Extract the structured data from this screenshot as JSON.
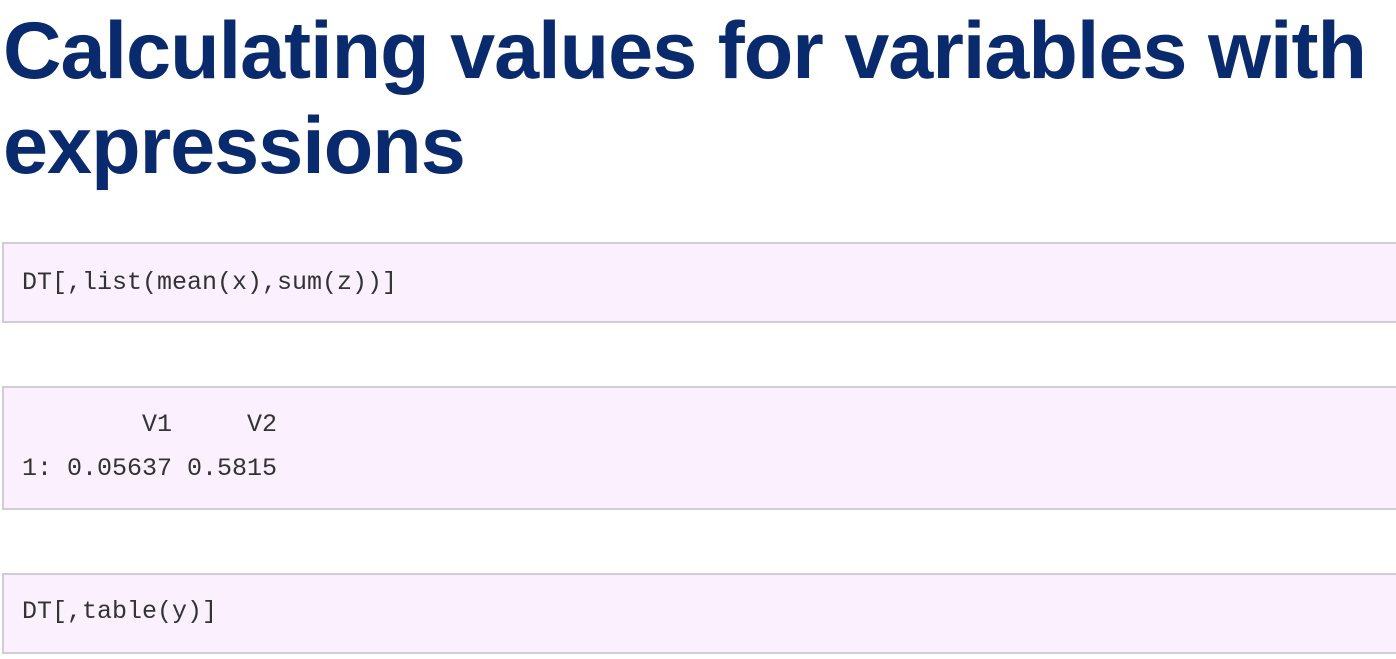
{
  "heading": {
    "line1": "Calculating values for variables with",
    "line2": "expressions"
  },
  "code_blocks": [
    {
      "text": "DT[,list(mean(x),sum(z))]"
    },
    {
      "header": "        V1     V2",
      "row": "1: 0.05637 0.5815"
    },
    {
      "text": "DT[,table(y)]"
    }
  ],
  "colors": {
    "heading": "#0a2a6e",
    "code_background": "#fbf0fd",
    "code_border": "#d2ccd3",
    "code_text": "#333333"
  }
}
